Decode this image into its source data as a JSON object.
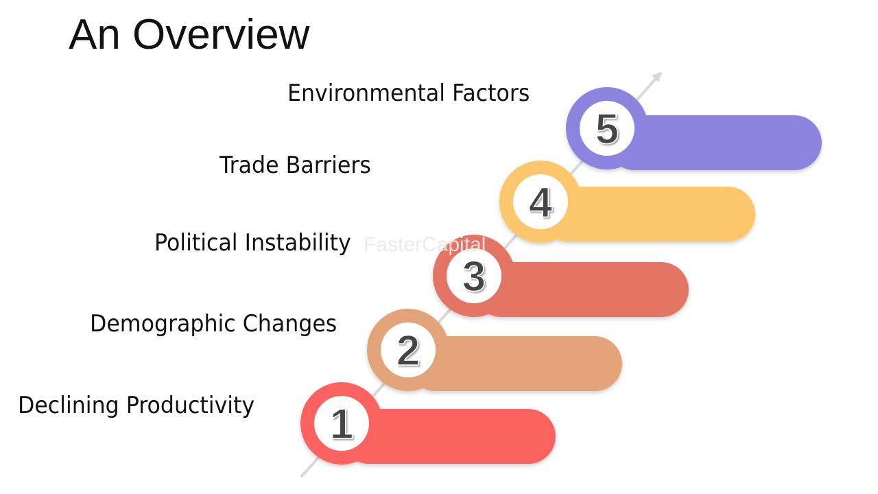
{
  "title": "An Overview",
  "watermark": "FasterCapital",
  "steps": [
    {
      "number": "1",
      "label": "Declining Productivity",
      "color": "#fc6460"
    },
    {
      "number": "2",
      "label": "Demographic Changes",
      "color": "#e3a479"
    },
    {
      "number": "3",
      "label": "Political Instability",
      "color": "#e47465"
    },
    {
      "number": "4",
      "label": "Trade Barriers",
      "color": "#fbc66c"
    },
    {
      "number": "5",
      "label": "Environmental Factors",
      "color": "#8c84de"
    }
  ]
}
